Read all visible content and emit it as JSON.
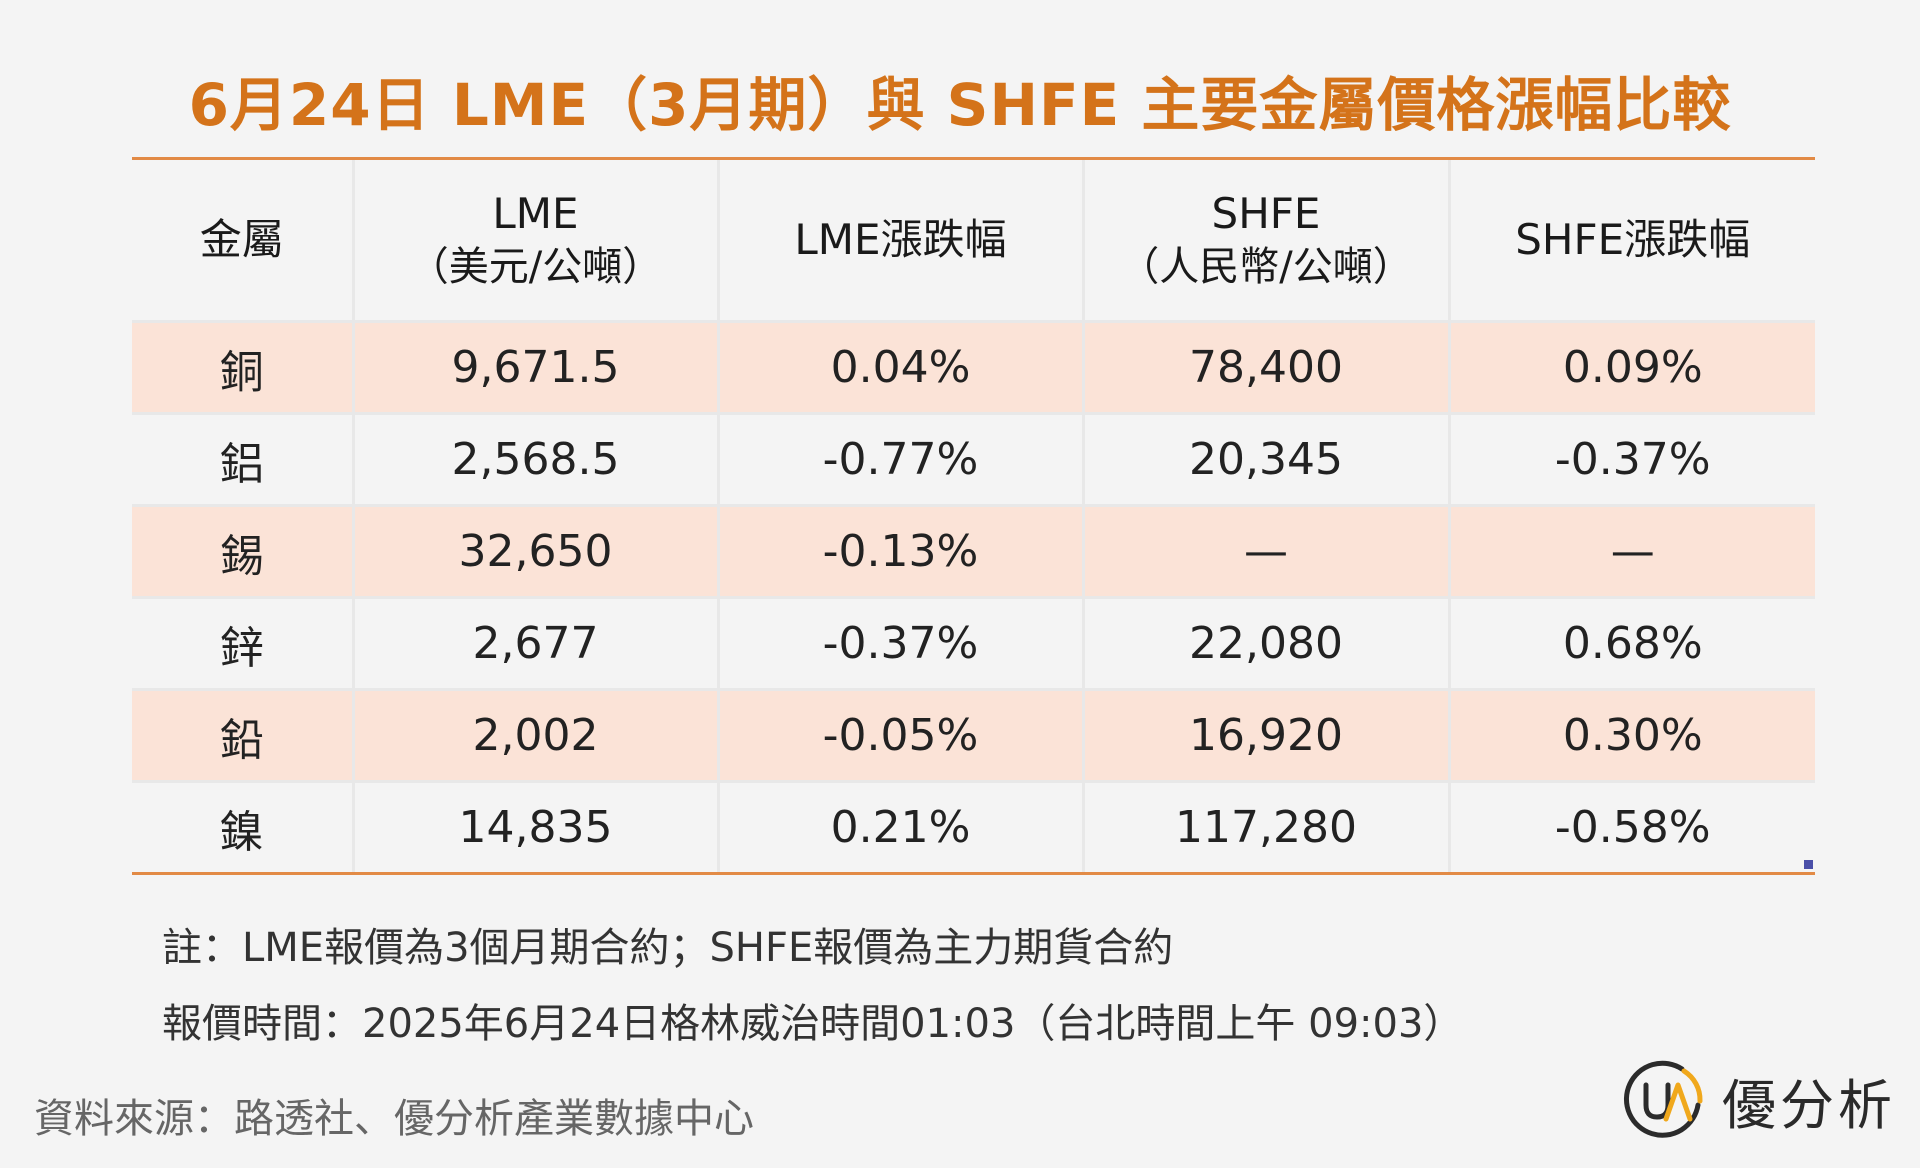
{
  "title": "6月24日 LME（3月期）與 SHFE 主要金屬價格漲幅比較",
  "table": {
    "headers": [
      {
        "line1": "金屬",
        "line2": ""
      },
      {
        "line1": "LME",
        "line2": "（美元/公噸）"
      },
      {
        "line1": "LME漲跌幅",
        "line2": ""
      },
      {
        "line1": "SHFE",
        "line2": "（人民幣/公噸）"
      },
      {
        "line1": "SHFE漲跌幅",
        "line2": ""
      }
    ],
    "rows": [
      [
        "銅",
        "9,671.5",
        "0.04%",
        "78,400",
        "0.09%"
      ],
      [
        "鋁",
        "2,568.5",
        "-0.77%",
        "20,345",
        "-0.37%"
      ],
      [
        "錫",
        "32,650",
        "-0.13%",
        "—",
        "—"
      ],
      [
        "鋅",
        "2,677",
        "-0.37%",
        "22,080",
        "0.68%"
      ],
      [
        "鉛",
        "2,002",
        "-0.05%",
        "16,920",
        "0.30%"
      ],
      [
        "鎳",
        "14,835",
        "0.21%",
        "117,280",
        "-0.58%"
      ]
    ]
  },
  "notes": [
    "註：LME報價為3個月期合約；SHFE報價為主力期貨合約",
    "報價時間：2025年6月24日格林威治時間01:03（台北時間上午 09:03）"
  ],
  "source": "資料來源：路透社、優分析產業數據中心",
  "brand": {
    "logo_text": "UA",
    "name": "優分析",
    "colors": {
      "ring": "#2b2b2b",
      "accent": "#f0a81c"
    }
  },
  "colors": {
    "title": "#d4731a",
    "rule": "#e28a45",
    "shaded_row": "#fbe3d7"
  }
}
